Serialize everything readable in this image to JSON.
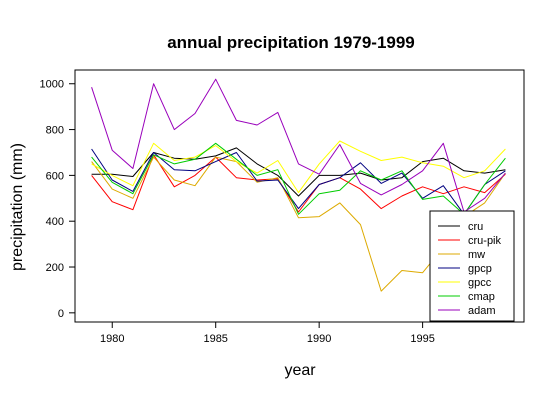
{
  "chart_data": {
    "type": "line",
    "title": "annual precipitation 1979-1999",
    "xlabel": "year",
    "ylabel": "precipitation (mm)",
    "xlim": [
      1978.2,
      1999.9
    ],
    "ylim": [
      -40,
      1060
    ],
    "xticks": [
      1980,
      1985,
      1990,
      1995
    ],
    "yticks": [
      0,
      200,
      400,
      600,
      800,
      1000
    ],
    "x": [
      1979,
      1980,
      1981,
      1982,
      1983,
      1984,
      1985,
      1986,
      1987,
      1988,
      1989,
      1990,
      1991,
      1992,
      1993,
      1994,
      1995,
      1996,
      1997,
      1998,
      1999
    ],
    "legend_position": "bottom-right",
    "grid": false,
    "series": [
      {
        "name": "cru",
        "color": "#000000",
        "values": [
          605,
          605,
          595,
          700,
          675,
          670,
          685,
          720,
          650,
          600,
          510,
          600,
          600,
          610,
          580,
          590,
          660,
          675,
          620,
          610,
          625
        ]
      },
      {
        "name": "cru-pik",
        "color": "#ff0000",
        "values": [
          600,
          485,
          450,
          690,
          550,
          600,
          680,
          590,
          580,
          585,
          440,
          560,
          590,
          540,
          455,
          510,
          550,
          520,
          550,
          525,
          605
        ]
      },
      {
        "name": "mw",
        "color": "#ddaa00",
        "values": [
          660,
          540,
          500,
          680,
          580,
          555,
          680,
          660,
          570,
          590,
          415,
          420,
          480,
          385,
          95,
          185,
          175,
          285,
          420,
          480,
          610
        ]
      },
      {
        "name": "gpcp",
        "color": "#000080",
        "values": [
          715,
          580,
          530,
          700,
          625,
          620,
          660,
          700,
          575,
          580,
          455,
          560,
          590,
          655,
          565,
          610,
          500,
          555,
          430,
          560,
          620
        ]
      },
      {
        "name": "gpcc",
        "color": "#ffff00",
        "values": [
          650,
          600,
          555,
          740,
          665,
          680,
          730,
          660,
          610,
          665,
          525,
          650,
          750,
          705,
          665,
          680,
          655,
          640,
          590,
          620,
          715
        ]
      },
      {
        "name": "cmap",
        "color": "#00cc00",
        "values": [
          680,
          570,
          520,
          690,
          650,
          670,
          740,
          670,
          600,
          625,
          430,
          520,
          535,
          620,
          580,
          620,
          495,
          510,
          430,
          560,
          675
        ]
      },
      {
        "name": "adam",
        "color": "#9900bb",
        "values": [
          985,
          710,
          630,
          1000,
          800,
          870,
          1020,
          840,
          820,
          875,
          650,
          605,
          735,
          565,
          515,
          560,
          620,
          740,
          440,
          500,
          610
        ]
      }
    ]
  }
}
